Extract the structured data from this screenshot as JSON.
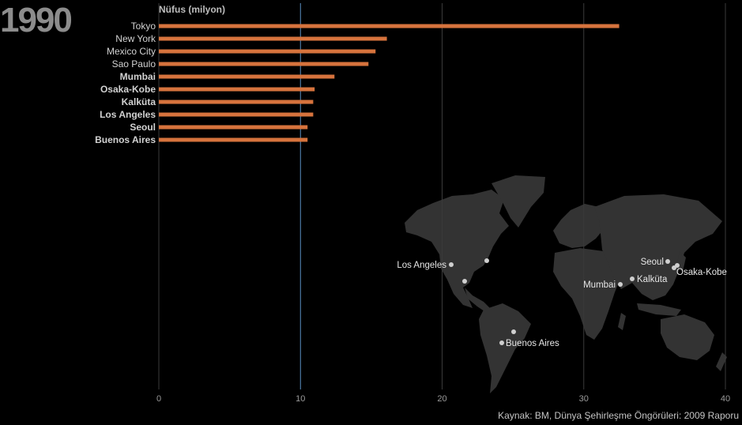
{
  "header": {
    "year": "1990",
    "unit_label": "Nüfus (milyon)"
  },
  "footer": {
    "source": "Kaynak: BM, Dünya Şehirleşme Öngörüleri: 2009 Raporu"
  },
  "colors": {
    "bar": "#d6733d",
    "background": "#000000",
    "grid": "#3a3a3a",
    "reference_line": "#5b8fc4",
    "land": "#333333",
    "dot": "#cfcfcf"
  },
  "chart_data": {
    "type": "bar",
    "orientation": "horizontal",
    "categories": [
      "Tokyo",
      "New York",
      "Mexico City",
      "Sao Paulo",
      "Mumbai",
      "Osaka-Kobe",
      "Kalküta",
      "Los Angeles",
      "Seoul",
      "Buenos Aires"
    ],
    "bold_categories": [
      "Mumbai",
      "Osaka-Kobe",
      "Kalküta",
      "Los Angeles",
      "Seoul",
      "Buenos Aires"
    ],
    "values": [
      32.5,
      16.1,
      15.3,
      14.8,
      12.4,
      11.0,
      10.9,
      10.9,
      10.5,
      10.5
    ],
    "xlim": [
      0,
      40
    ],
    "xticks": [
      0,
      10,
      20,
      30,
      40
    ],
    "reference_value": 10,
    "grid": true
  },
  "map": {
    "labeled_cities": [
      "Los Angeles",
      "Seoul",
      "Osaka-Kobe",
      "Mumbai",
      "Kalküta",
      "Buenos Aires"
    ]
  }
}
